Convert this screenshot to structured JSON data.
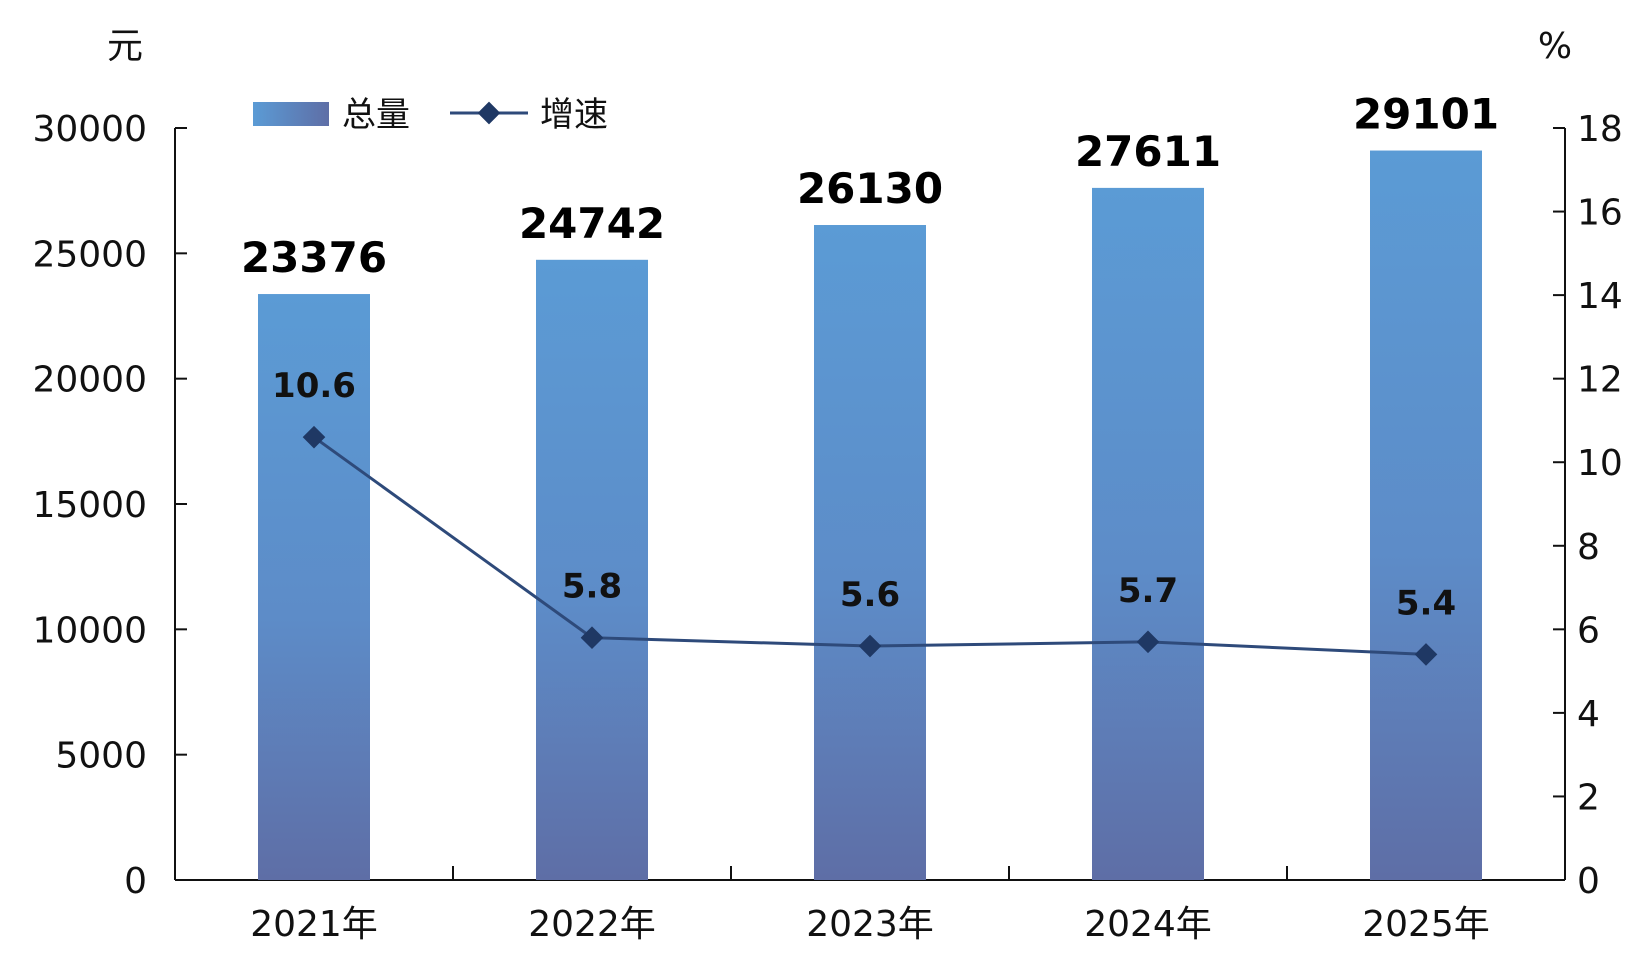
{
  "chart_data": {
    "type": "bar",
    "categories": [
      "2021年",
      "2022年",
      "2023年",
      "2024年",
      "2025年"
    ],
    "series": [
      {
        "name": "总量",
        "type": "bar",
        "axis": "left",
        "values": [
          23376,
          24742,
          26130,
          27611,
          29101
        ],
        "labels": [
          "23376",
          "24742",
          "26130",
          "27611",
          "29101"
        ]
      },
      {
        "name": "增速",
        "type": "line",
        "axis": "right",
        "values": [
          10.6,
          5.8,
          5.6,
          5.7,
          5.4
        ],
        "labels": [
          "10.6",
          "5.8",
          "5.6",
          "5.7",
          "5.4"
        ]
      }
    ],
    "y_left": {
      "unit": "元",
      "range": [
        0,
        30000
      ],
      "ticks": [
        "0",
        "5000",
        "10000",
        "15000",
        "20000",
        "25000",
        "30000"
      ]
    },
    "y_right": {
      "unit": "%",
      "range": [
        0,
        18
      ],
      "ticks": [
        "0",
        "2",
        "4",
        "6",
        "8",
        "10",
        "12",
        "14",
        "16",
        "18"
      ]
    },
    "legend_position": "top-left",
    "grid": false,
    "colors": {
      "bar_top": "#5b9bd5",
      "bar_bottom": "#5e6ea6",
      "line": "#2e4a7a",
      "marker": "#1f3864"
    }
  }
}
